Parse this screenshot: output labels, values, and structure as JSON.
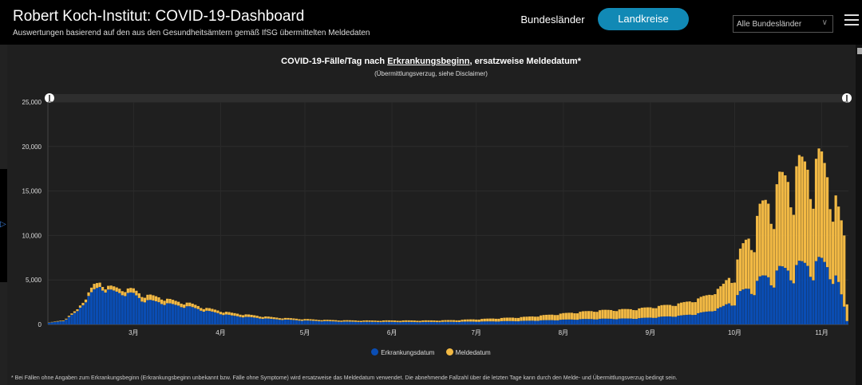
{
  "header": {
    "title": "Robert Koch-Institut: COVID-19-Dashboard",
    "subtitle": "Auswertungen basierend auf den aus den Gesundheitsämtern gemäß IfSG übermittelten Meldedaten",
    "nav": {
      "bundeslaender": "Bundesländer",
      "landkreise": "Landkreise"
    },
    "select": {
      "value": "Alle Bundesländer"
    }
  },
  "chart_data": {
    "type": "bar",
    "stacked": true,
    "title_pre": "COVID-19-Fälle/Tag nach ",
    "title_link": "Erkrankungsbeginn",
    "title_post": ", ersatzweise Meldedatum*",
    "subtitle": "(Übermittlungsverzug, siehe Disclaimer)",
    "y_ticks": [
      "0",
      "5,000",
      "10,000",
      "15,000",
      "20,000",
      "25,000"
    ],
    "ylim": [
      0,
      25000
    ],
    "x_tick_labels": [
      "3月",
      "4月",
      "5月",
      "6月",
      "7月",
      "8月",
      "9月",
      "10月",
      "11月"
    ],
    "x_tick_days": [
      30.5,
      61.5,
      91.5,
      122.5,
      152.5,
      183.5,
      214.5,
      244.5,
      275.5
    ],
    "n_days": 285,
    "grid": true,
    "legend_position": "bottom",
    "colors": {
      "erkrankung": "#0a4db3",
      "melde": "#f2b944"
    },
    "series": [
      {
        "name": "Erkrankungsdatum",
        "key": "erkrankung",
        "keypoints": [
          [
            0,
            200
          ],
          [
            5,
            400
          ],
          [
            10,
            1500
          ],
          [
            14,
            3200
          ],
          [
            16,
            3900
          ],
          [
            18,
            4300
          ],
          [
            20,
            4000
          ],
          [
            25,
            3600
          ],
          [
            30,
            3500
          ],
          [
            33,
            2800
          ],
          [
            36,
            2700
          ],
          [
            40,
            2500
          ],
          [
            45,
            2200
          ],
          [
            50,
            2000
          ],
          [
            55,
            1600
          ],
          [
            60,
            1300
          ],
          [
            65,
            1000
          ],
          [
            70,
            850
          ],
          [
            75,
            720
          ],
          [
            80,
            600
          ],
          [
            85,
            530
          ],
          [
            90,
            450
          ],
          [
            95,
            400
          ],
          [
            100,
            350
          ],
          [
            105,
            320
          ],
          [
            110,
            300
          ],
          [
            115,
            290
          ],
          [
            120,
            290
          ],
          [
            125,
            280
          ],
          [
            130,
            280
          ],
          [
            135,
            280
          ],
          [
            140,
            290
          ],
          [
            145,
            300
          ],
          [
            150,
            320
          ],
          [
            155,
            330
          ],
          [
            160,
            360
          ],
          [
            165,
            380
          ],
          [
            170,
            410
          ],
          [
            175,
            460
          ],
          [
            180,
            500
          ],
          [
            185,
            560
          ],
          [
            190,
            600
          ],
          [
            195,
            630
          ],
          [
            200,
            650
          ],
          [
            205,
            660
          ],
          [
            210,
            700
          ],
          [
            215,
            800
          ],
          [
            220,
            900
          ],
          [
            225,
            1000
          ],
          [
            230,
            1200
          ],
          [
            235,
            1500
          ],
          [
            240,
            2000
          ],
          [
            245,
            3300
          ],
          [
            250,
            4500
          ],
          [
            255,
            5500
          ],
          [
            260,
            6200
          ],
          [
            265,
            6600
          ],
          [
            270,
            7000
          ],
          [
            275,
            7200
          ],
          [
            279,
            6500
          ],
          [
            281,
            4500
          ],
          [
            283,
            2000
          ],
          [
            284,
            400
          ]
        ]
      },
      {
        "name": "Meldedatum",
        "key": "melde",
        "keypoints": [
          [
            0,
            30
          ],
          [
            5,
            80
          ],
          [
            10,
            200
          ],
          [
            14,
            400
          ],
          [
            16,
            600
          ],
          [
            20,
            400
          ],
          [
            25,
            500
          ],
          [
            30,
            500
          ],
          [
            35,
            600
          ],
          [
            40,
            550
          ],
          [
            45,
            450
          ],
          [
            50,
            400
          ],
          [
            55,
            320
          ],
          [
            60,
            300
          ],
          [
            65,
            300
          ],
          [
            70,
            280
          ],
          [
            75,
            240
          ],
          [
            80,
            200
          ],
          [
            85,
            180
          ],
          [
            90,
            170
          ],
          [
            95,
            150
          ],
          [
            100,
            150
          ],
          [
            105,
            150
          ],
          [
            110,
            150
          ],
          [
            115,
            150
          ],
          [
            120,
            160
          ],
          [
            125,
            170
          ],
          [
            130,
            170
          ],
          [
            135,
            170
          ],
          [
            140,
            180
          ],
          [
            145,
            200
          ],
          [
            150,
            250
          ],
          [
            155,
            300
          ],
          [
            160,
            350
          ],
          [
            165,
            400
          ],
          [
            170,
            450
          ],
          [
            175,
            550
          ],
          [
            180,
            650
          ],
          [
            185,
            750
          ],
          [
            190,
            850
          ],
          [
            195,
            950
          ],
          [
            200,
            1000
          ],
          [
            205,
            1050
          ],
          [
            210,
            1100
          ],
          [
            215,
            1200
          ],
          [
            220,
            1300
          ],
          [
            225,
            1400
          ],
          [
            230,
            1600
          ],
          [
            235,
            1900
          ],
          [
            240,
            2400
          ],
          [
            245,
            4000
          ],
          [
            250,
            6500
          ],
          [
            255,
            8500
          ],
          [
            260,
            10000
          ],
          [
            265,
            11000
          ],
          [
            270,
            11500
          ],
          [
            275,
            11500
          ],
          [
            279,
            10000
          ],
          [
            281,
            8000
          ],
          [
            283,
            8000
          ],
          [
            284,
            2000
          ]
        ]
      }
    ],
    "footnote": "* Bei Fällen ohne Angaben zum Erkrankungsbeginn (Erkrankungsbeginn unbekannt bzw. Fälle ohne Symptome) wird ersatzweise das Meldedatum verwendet. Die abnehmende Fallzahl über die letzten Tage kann durch den Melde- und Übermittlungsverzug bedingt sein."
  }
}
